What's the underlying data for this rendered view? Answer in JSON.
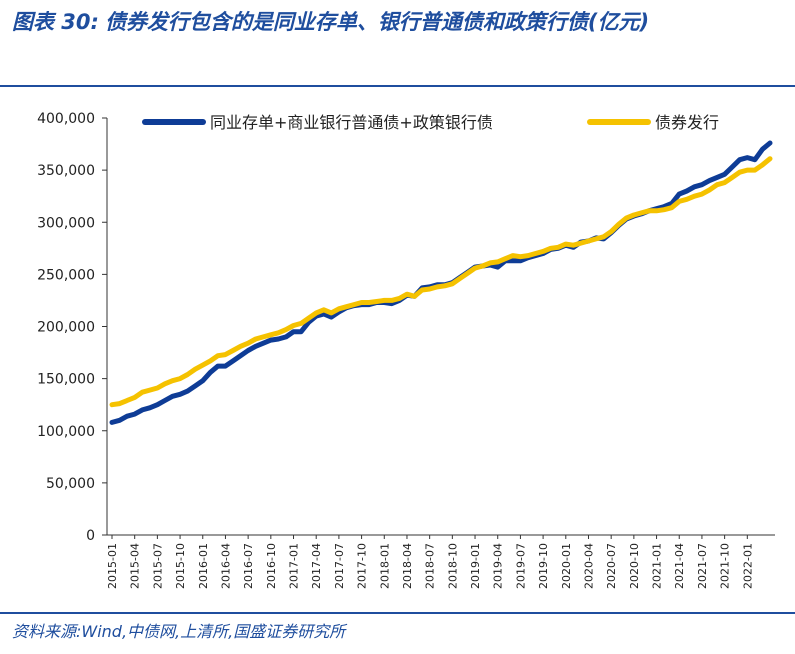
{
  "figure": {
    "title_prefix": "图表 30:",
    "title_text": "债券发行包含的是同业存单、银行普通债和政策行债(亿元)",
    "source": "资料来源:Wind,中债网,上清所,国盛证券研究所"
  },
  "colors": {
    "series1": "#0e3c96",
    "series2": "#f5c200",
    "title": "#1f4e9e",
    "axis": "#333333"
  },
  "chart_data": {
    "type": "line",
    "legend_position": "top",
    "grid": false,
    "ylim": [
      0,
      400000
    ],
    "yticks": [
      "0",
      "50,000",
      "100,000",
      "150,000",
      "200,000",
      "250,000",
      "300,000",
      "350,000",
      "400,000"
    ],
    "xtick_labels": [
      "2015-01",
      "2015-04",
      "2015-07",
      "2015-10",
      "2016-01",
      "2016-04",
      "2016-07",
      "2016-10",
      "2017-01",
      "2017-04",
      "2017-07",
      "2017-10",
      "2018-01",
      "2018-04",
      "2018-07",
      "2018-10",
      "2019-01",
      "2019-04",
      "2019-07",
      "2019-10",
      "2020-01",
      "2020-04",
      "2020-07",
      "2020-10",
      "2021-01",
      "2021-04",
      "2021-07",
      "2021-10",
      "2022-01"
    ],
    "x_start": "2015-01",
    "series": [
      {
        "name": "同业存单+商业银行普通债+政策银行债",
        "values": [
          108000,
          110000,
          114000,
          116000,
          120000,
          122000,
          125000,
          129000,
          133000,
          135000,
          138000,
          143000,
          148000,
          156000,
          162000,
          162000,
          167000,
          172000,
          177000,
          181000,
          184000,
          187000,
          188000,
          190000,
          195000,
          195000,
          204000,
          210000,
          212000,
          209000,
          214000,
          218000,
          220000,
          221000,
          221000,
          223000,
          223000,
          222000,
          225000,
          230000,
          229000,
          237000,
          238000,
          240000,
          240000,
          242000,
          247000,
          252000,
          257000,
          258000,
          259000,
          257000,
          263000,
          263000,
          263000,
          266000,
          268000,
          270000,
          274000,
          275000,
          278000,
          276000,
          281000,
          282000,
          285000,
          284000,
          290000,
          297000,
          303000,
          306000,
          308000,
          311000,
          313000,
          315000,
          318000,
          327000,
          330000,
          334000,
          336000,
          340000,
          343000,
          346000,
          353000,
          360000,
          362000,
          360000,
          370000,
          376000
        ]
      },
      {
        "name": "债券发行",
        "values": [
          125000,
          126000,
          129000,
          132000,
          137000,
          139000,
          141000,
          145000,
          148000,
          150000,
          154000,
          159000,
          163000,
          167000,
          172000,
          173000,
          177000,
          181000,
          184000,
          188000,
          190000,
          192000,
          194000,
          197000,
          201000,
          203000,
          208000,
          213000,
          216000,
          213000,
          217000,
          219000,
          221000,
          223000,
          223000,
          224000,
          225000,
          225000,
          227000,
          231000,
          229000,
          235000,
          236000,
          238000,
          239000,
          241000,
          246000,
          251000,
          256000,
          258000,
          261000,
          262000,
          265000,
          268000,
          267000,
          268000,
          270000,
          272000,
          275000,
          276000,
          279000,
          278000,
          280000,
          282000,
          284000,
          286000,
          291000,
          298000,
          304000,
          307000,
          309000,
          311000,
          311000,
          312000,
          314000,
          320000,
          322000,
          325000,
          327000,
          331000,
          336000,
          338000,
          343000,
          348000,
          350000,
          350000,
          355000,
          361000
        ]
      }
    ]
  }
}
